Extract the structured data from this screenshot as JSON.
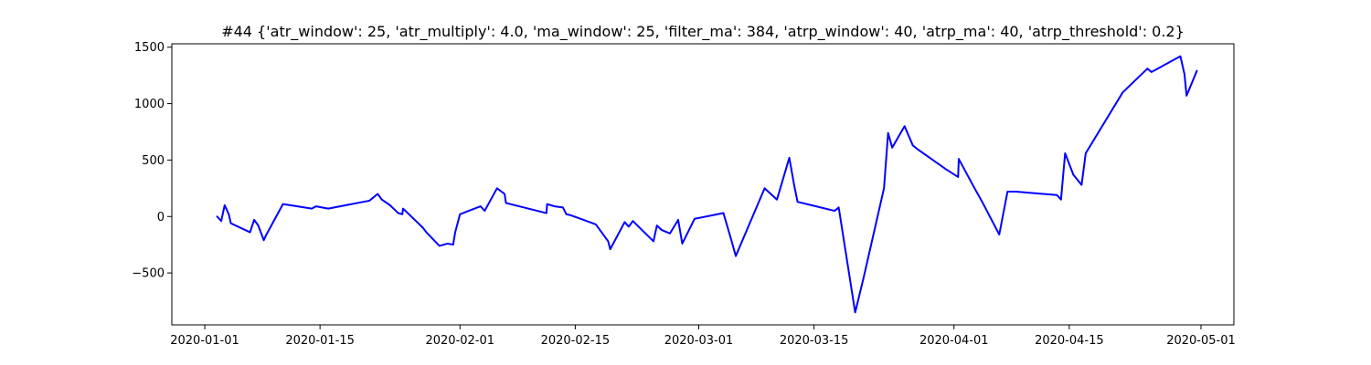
{
  "chart_data": {
    "type": "line",
    "title": "#44 {'atr_window': 25, 'atr_multiply': 4.0, 'ma_window': 25, 'filter_ma': 384, 'atrp_window': 40, 'atrp_ma': 40, 'atrp_threshold': 0.2}",
    "xlabel": "",
    "ylabel": "",
    "xlim": [
      "2019-12-28",
      "2020-05-05"
    ],
    "ylim": [
      -960,
      1530
    ],
    "grid": false,
    "line_color": "#0000ff",
    "x_ticks": [
      {
        "x": "2020-01-01",
        "label": "2020-01-01"
      },
      {
        "x": "2020-01-15",
        "label": "2020-01-15"
      },
      {
        "x": "2020-02-01",
        "label": "2020-02-01"
      },
      {
        "x": "2020-02-15",
        "label": "2020-02-15"
      },
      {
        "x": "2020-03-01",
        "label": "2020-03-01"
      },
      {
        "x": "2020-03-15",
        "label": "2020-03-15"
      },
      {
        "x": "2020-04-01",
        "label": "2020-04-01"
      },
      {
        "x": "2020-04-15",
        "label": "2020-04-15"
      },
      {
        "x": "2020-05-01",
        "label": "2020-05-01"
      }
    ],
    "y_ticks": [
      {
        "y": -500,
        "label": "−500"
      },
      {
        "y": 0,
        "label": "0"
      },
      {
        "y": 500,
        "label": "500"
      },
      {
        "y": 1000,
        "label": "1000"
      },
      {
        "y": 1500,
        "label": "1500"
      }
    ],
    "series": [
      {
        "color": "#0000ff",
        "points": [
          [
            "2020-01-02 12:00",
            0
          ],
          [
            "2020-01-03 00:00",
            -40
          ],
          [
            "2020-01-03 10:00",
            100
          ],
          [
            "2020-01-03 22:00",
            20
          ],
          [
            "2020-01-04 04:00",
            -60
          ],
          [
            "2020-01-06 12:00",
            -140
          ],
          [
            "2020-01-07 00:00",
            -30
          ],
          [
            "2020-01-07 12:00",
            -80
          ],
          [
            "2020-01-08 04:00",
            -210
          ],
          [
            "2020-01-08 10:00",
            -170
          ],
          [
            "2020-01-10 12:00",
            110
          ],
          [
            "2020-01-14 00:00",
            70
          ],
          [
            "2020-01-14 12:00",
            90
          ],
          [
            "2020-01-16 00:00",
            70
          ],
          [
            "2020-01-21 00:00",
            140
          ],
          [
            "2020-01-22 00:00",
            200
          ],
          [
            "2020-01-22 12:00",
            150
          ],
          [
            "2020-01-23 12:00",
            100
          ],
          [
            "2020-01-24 12:00",
            30
          ],
          [
            "2020-01-25 00:00",
            20
          ],
          [
            "2020-01-25 02:00",
            70
          ],
          [
            "2020-01-27 12:00",
            -100
          ],
          [
            "2020-01-27 22:00",
            -140
          ],
          [
            "2020-01-29 12:00",
            -260
          ],
          [
            "2020-01-30 12:00",
            -240
          ],
          [
            "2020-01-31 04:00",
            -250
          ],
          [
            "2020-01-31 10:00",
            -140
          ],
          [
            "2020-02-01 00:00",
            20
          ],
          [
            "2020-02-03 12:00",
            90
          ],
          [
            "2020-02-04 00:00",
            50
          ],
          [
            "2020-02-05 12:00",
            250
          ],
          [
            "2020-02-06 10:00",
            200
          ],
          [
            "2020-02-06 14:00",
            120
          ],
          [
            "2020-02-11 12:00",
            30
          ],
          [
            "2020-02-11 14:00",
            110
          ],
          [
            "2020-02-12 12:00",
            90
          ],
          [
            "2020-02-13 12:00",
            80
          ],
          [
            "2020-02-13 22:00",
            20
          ],
          [
            "2020-02-14 12:00",
            10
          ],
          [
            "2020-02-17 12:00",
            -70
          ],
          [
            "2020-02-19 00:00",
            -220
          ],
          [
            "2020-02-19 06:00",
            -290
          ],
          [
            "2020-02-21 00:00",
            -50
          ],
          [
            "2020-02-21 12:00",
            -90
          ],
          [
            "2020-02-22 00:00",
            -40
          ],
          [
            "2020-02-24 12:00",
            -220
          ],
          [
            "2020-02-24 22:00",
            -80
          ],
          [
            "2020-02-25 12:00",
            -120
          ],
          [
            "2020-02-26 12:00",
            -150
          ],
          [
            "2020-02-27 12:00",
            -30
          ],
          [
            "2020-02-28 00:00",
            -240
          ],
          [
            "2020-02-29 12:00",
            -20
          ],
          [
            "2020-03-04 00:00",
            30
          ],
          [
            "2020-03-05 00:00",
            -220
          ],
          [
            "2020-03-05 12:00",
            -350
          ],
          [
            "2020-03-09 00:00",
            250
          ],
          [
            "2020-03-10 12:00",
            150
          ],
          [
            "2020-03-12 00:00",
            520
          ],
          [
            "2020-03-12 14:00",
            280
          ],
          [
            "2020-03-13 00:00",
            130
          ],
          [
            "2020-03-17 12:00",
            50
          ],
          [
            "2020-03-18 00:00",
            80
          ],
          [
            "2020-03-20 00:00",
            -850
          ],
          [
            "2020-03-21 00:00",
            -550
          ],
          [
            "2020-03-23 12:00",
            250
          ],
          [
            "2020-03-24 00:00",
            740
          ],
          [
            "2020-03-24 12:00",
            610
          ],
          [
            "2020-03-26 00:00",
            800
          ],
          [
            "2020-03-27 00:00",
            630
          ],
          [
            "2020-03-27 12:00",
            600
          ],
          [
            "2020-03-31 00:00",
            420
          ],
          [
            "2020-04-01 12:00",
            350
          ],
          [
            "2020-04-01 14:00",
            510
          ],
          [
            "2020-04-03 12:00",
            250
          ],
          [
            "2020-04-04 12:00",
            120
          ],
          [
            "2020-04-06 12:00",
            -160
          ],
          [
            "2020-04-07 12:00",
            220
          ],
          [
            "2020-04-08 12:00",
            220
          ],
          [
            "2020-04-13 12:00",
            190
          ],
          [
            "2020-04-14 00:00",
            150
          ],
          [
            "2020-04-14 12:00",
            560
          ],
          [
            "2020-04-15 12:00",
            370
          ],
          [
            "2020-04-16 12:00",
            280
          ],
          [
            "2020-04-17 00:00",
            560
          ],
          [
            "2020-04-21 12:00",
            1100
          ],
          [
            "2020-04-24 12:00",
            1310
          ],
          [
            "2020-04-25 00:00",
            1280
          ],
          [
            "2020-04-28 12:00",
            1420
          ],
          [
            "2020-04-29 00:00",
            1260
          ],
          [
            "2020-04-29 06:00",
            1070
          ],
          [
            "2020-04-30 12:00",
            1290
          ]
        ]
      }
    ]
  }
}
